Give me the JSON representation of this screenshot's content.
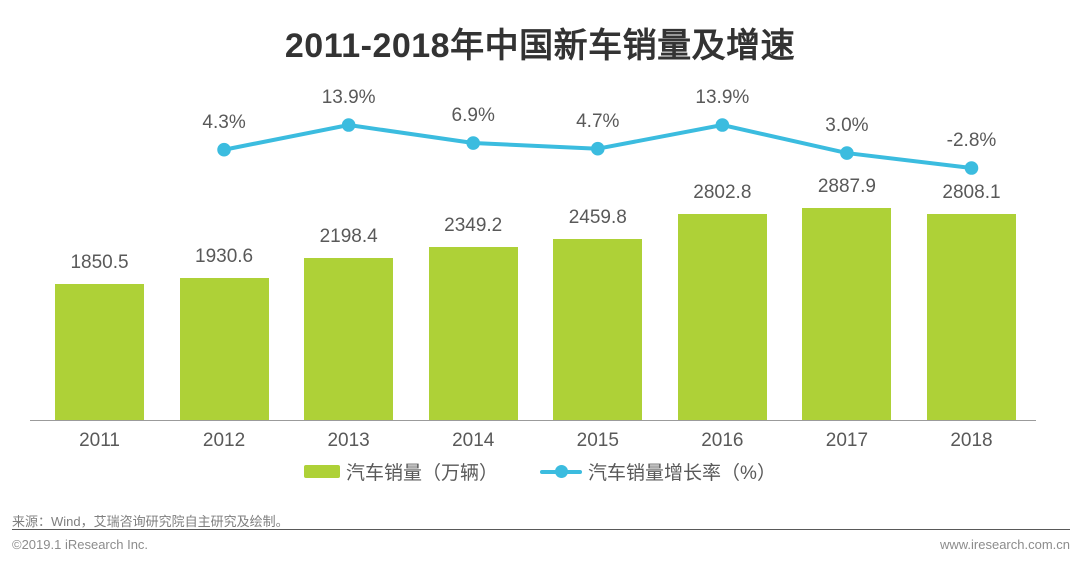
{
  "title": "2011-2018年中国新车销量及增速",
  "chart_data": {
    "type": "bar+line",
    "categories": [
      "2011",
      "2012",
      "2013",
      "2014",
      "2015",
      "2016",
      "2017",
      "2018"
    ],
    "series": [
      {
        "name": "汽车销量（万辆）",
        "type": "bar",
        "color": "#aed137",
        "values": [
          1850.5,
          1930.6,
          2198.4,
          2349.2,
          2459.8,
          2802.8,
          2887.9,
          2808.1
        ],
        "labels": [
          "1850.5",
          "1930.6",
          "2198.4",
          "2349.2",
          "2459.8",
          "2802.8",
          "2887.9",
          "2808.1"
        ]
      },
      {
        "name": "汽车销量增长率（%）",
        "type": "line",
        "color": "#3bbcdf",
        "values": [
          null,
          4.3,
          13.9,
          6.9,
          4.7,
          13.9,
          3.0,
          -2.8
        ],
        "labels": [
          null,
          "4.3%",
          "13.9%",
          "6.9%",
          "4.7%",
          "13.9%",
          "3.0%",
          "-2.8%"
        ]
      }
    ],
    "title": "2011-2018年中国新车销量及增速",
    "xlabel": "",
    "ylabel": "",
    "grid": false,
    "legend_position": "bottom",
    "y_axis_visible": false
  },
  "legend": {
    "bar_label": "汽车销量（万辆）",
    "line_label": "汽车销量增长率（%）"
  },
  "footer": {
    "source": "来源：Wind，艾瑞咨询研究院自主研究及绘制。",
    "copyright": "©2019.1 iResearch Inc.",
    "website": "www.iresearch.com.cn"
  },
  "colors": {
    "bar": "#aed137",
    "line": "#3bbcdf",
    "title_text": "#333333",
    "label_text": "#595959",
    "axis_line": "#9b9b9b",
    "footer_text": "#8c8c8c"
  }
}
